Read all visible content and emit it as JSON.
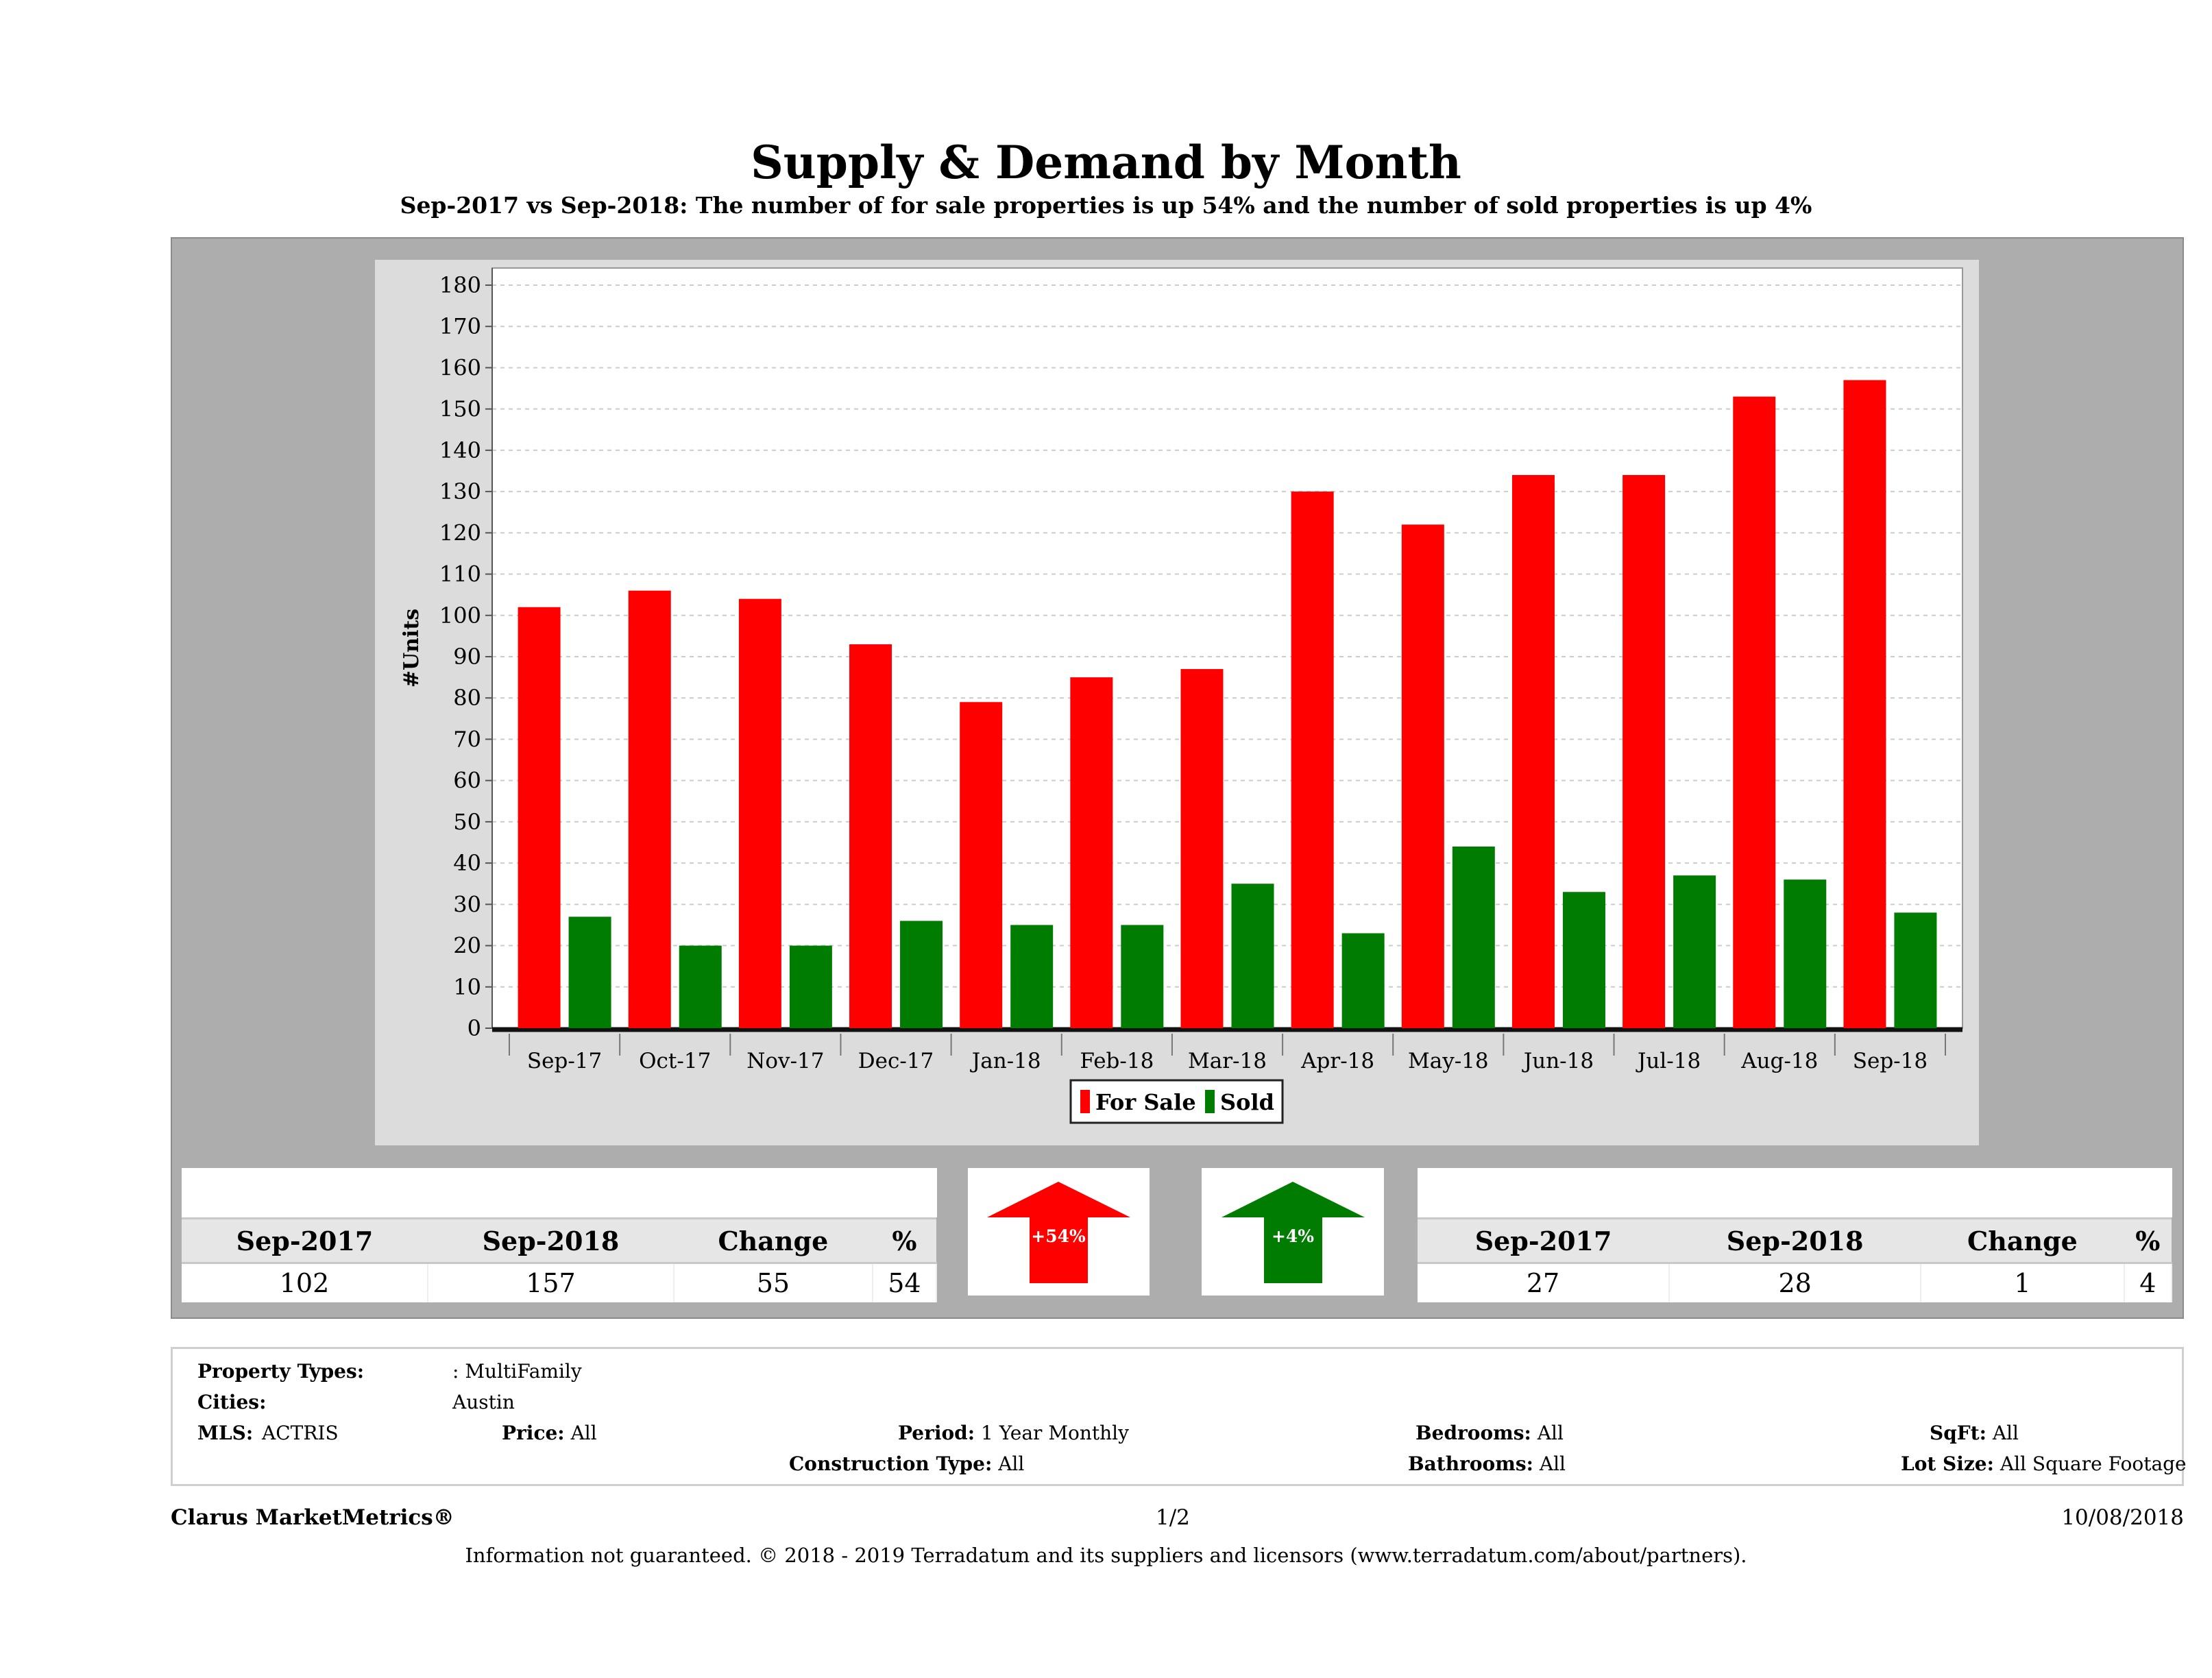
{
  "chart_data": {
    "type": "bar",
    "title": "Supply & Demand by Month",
    "subtitle": "Sep-2017 vs Sep-2018: The number of for sale properties is up 54% and the number of sold properties is up 4%",
    "ylabel": "#Units",
    "xlabel": "",
    "ylim": [
      0,
      180
    ],
    "yticks": [
      0,
      10,
      20,
      30,
      40,
      50,
      60,
      70,
      80,
      90,
      100,
      110,
      120,
      130,
      140,
      150,
      160,
      170,
      180
    ],
    "grid": true,
    "legend_position": "bottom",
    "categories": [
      "Sep-17",
      "Oct-17",
      "Nov-17",
      "Dec-17",
      "Jan-18",
      "Feb-18",
      "Mar-18",
      "Apr-18",
      "May-18",
      "Jun-18",
      "Jul-18",
      "Aug-18",
      "Sep-18"
    ],
    "series": [
      {
        "name": "For Sale",
        "color": "#ff0000",
        "values": [
          102,
          106,
          104,
          93,
          79,
          85,
          87,
          130,
          122,
          134,
          134,
          153,
          157
        ]
      },
      {
        "name": "Sold",
        "color": "#007c00",
        "values": [
          27,
          20,
          20,
          26,
          25,
          25,
          35,
          23,
          44,
          33,
          37,
          36,
          28
        ]
      }
    ]
  },
  "for_sale_summary": {
    "headers": [
      "Sep-2017",
      "Sep-2018",
      "Change",
      "%"
    ],
    "values": [
      "102",
      "157",
      "55",
      "54"
    ],
    "badge": "+54%",
    "badge_color": "#ff0000"
  },
  "sold_summary": {
    "headers": [
      "Sep-2017",
      "Sep-2018",
      "Change",
      "%"
    ],
    "values": [
      "27",
      "28",
      "1",
      "4"
    ],
    "badge": "+4%",
    "badge_color": "#007c00"
  },
  "filters": {
    "property_types_label": "Property Types:",
    "property_types": ": MultiFamily",
    "cities_label": "Cities:",
    "cities": "Austin",
    "mls_label": "MLS:",
    "mls": "ACTRIS",
    "price_label": "Price:",
    "price": "All",
    "period_label": "Period:",
    "period": "1 Year Monthly",
    "construction_label": "Construction Type:",
    "construction": "All",
    "bedrooms_label": "Bedrooms:",
    "bedrooms": "All",
    "bathrooms_label": "Bathrooms:",
    "bathrooms": "All",
    "sqft_label": "SqFt:",
    "sqft": "All",
    "lot_label": "Lot Size:",
    "lot": "All Square Footage"
  },
  "footer": {
    "brand": "Clarus MarketMetrics®",
    "page": "1/2",
    "date": "10/08/2018",
    "disclaimer": "Information not guaranteed. © 2018 - 2019 Terradatum and its suppliers and licensors (www.terradatum.com/about/partners)."
  }
}
